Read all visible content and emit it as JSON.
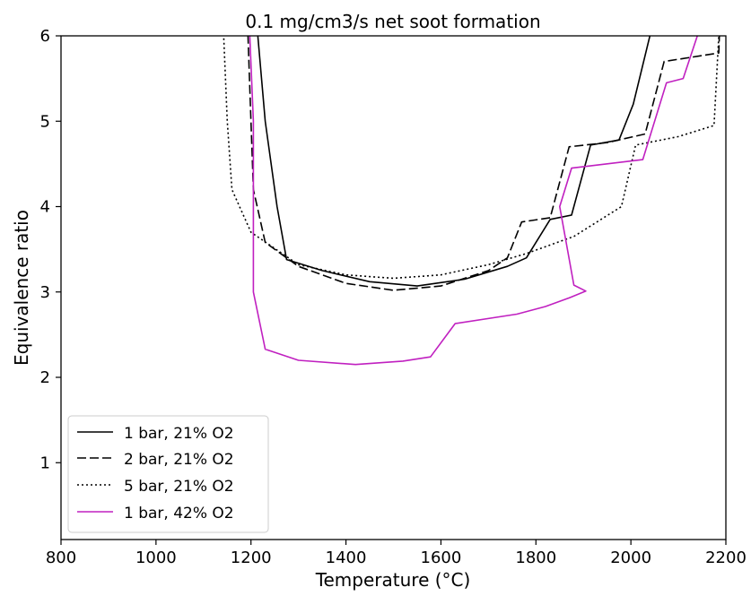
{
  "chart_data": {
    "type": "line",
    "title": "0.1 mg/cm3/s net soot formation",
    "xlabel": "Temperature (°C)",
    "ylabel": "Equivalence ratio",
    "xlim": [
      800,
      2200
    ],
    "ylim": [
      0.1,
      6
    ],
    "x_ticks": [
      800,
      1000,
      1200,
      1400,
      1600,
      1800,
      2000,
      2200
    ],
    "y_ticks": [
      1,
      2,
      3,
      4,
      5,
      6
    ],
    "grid": false,
    "legend_position": "lower-left",
    "series": [
      {
        "name": "1 bar, 21% O2",
        "color": "#000000",
        "dash": "solid",
        "points": [
          [
            1205,
            6.6
          ],
          [
            1230,
            5.0
          ],
          [
            1255,
            4.0
          ],
          [
            1275,
            3.38
          ],
          [
            1350,
            3.25
          ],
          [
            1450,
            3.12
          ],
          [
            1550,
            3.07
          ],
          [
            1650,
            3.15
          ],
          [
            1740,
            3.3
          ],
          [
            1780,
            3.4
          ],
          [
            1830,
            3.85
          ],
          [
            1875,
            3.9
          ],
          [
            1915,
            4.72
          ],
          [
            1975,
            4.78
          ],
          [
            2005,
            5.2
          ],
          [
            2040,
            6.0
          ],
          [
            2055,
            6.6
          ]
        ]
      },
      {
        "name": "2 bar, 21% O2",
        "color": "#000000",
        "dash": "dashed",
        "points": [
          [
            1190,
            6.6
          ],
          [
            1200,
            5.0
          ],
          [
            1205,
            4.2
          ],
          [
            1230,
            3.58
          ],
          [
            1300,
            3.3
          ],
          [
            1400,
            3.1
          ],
          [
            1500,
            3.02
          ],
          [
            1600,
            3.07
          ],
          [
            1700,
            3.25
          ],
          [
            1740,
            3.4
          ],
          [
            1770,
            3.82
          ],
          [
            1830,
            3.87
          ],
          [
            1870,
            4.7
          ],
          [
            1950,
            4.75
          ],
          [
            2030,
            4.85
          ],
          [
            2070,
            5.7
          ],
          [
            2185,
            5.8
          ],
          [
            2190,
            6.6
          ]
        ]
      },
      {
        "name": "5 bar, 21% O2",
        "color": "#000000",
        "dash": "dotted",
        "points": [
          [
            1138,
            6.6
          ],
          [
            1150,
            5.0
          ],
          [
            1160,
            4.2
          ],
          [
            1200,
            3.7
          ],
          [
            1300,
            3.32
          ],
          [
            1400,
            3.2
          ],
          [
            1500,
            3.16
          ],
          [
            1600,
            3.2
          ],
          [
            1700,
            3.32
          ],
          [
            1780,
            3.45
          ],
          [
            1880,
            3.65
          ],
          [
            1980,
            4.0
          ],
          [
            2010,
            4.72
          ],
          [
            2100,
            4.82
          ],
          [
            2175,
            4.95
          ],
          [
            2185,
            6.0
          ],
          [
            2190,
            6.6
          ]
        ]
      },
      {
        "name": "1 bar, 42% O2",
        "color": "#c020c0",
        "dash": "solid",
        "points": [
          [
            1193,
            6.6
          ],
          [
            1205,
            5.0
          ],
          [
            1205,
            3.0
          ],
          [
            1230,
            2.33
          ],
          [
            1300,
            2.2
          ],
          [
            1420,
            2.15
          ],
          [
            1520,
            2.19
          ],
          [
            1578,
            2.24
          ],
          [
            1630,
            2.63
          ],
          [
            1760,
            2.74
          ],
          [
            1820,
            2.83
          ],
          [
            1870,
            2.93
          ],
          [
            1905,
            3.01
          ],
          [
            1880,
            3.08
          ],
          [
            1850,
            4.0
          ],
          [
            1875,
            4.45
          ],
          [
            2025,
            4.55
          ],
          [
            2075,
            5.45
          ],
          [
            2110,
            5.5
          ],
          [
            2140,
            6.0
          ],
          [
            2155,
            6.6
          ]
        ]
      }
    ]
  }
}
